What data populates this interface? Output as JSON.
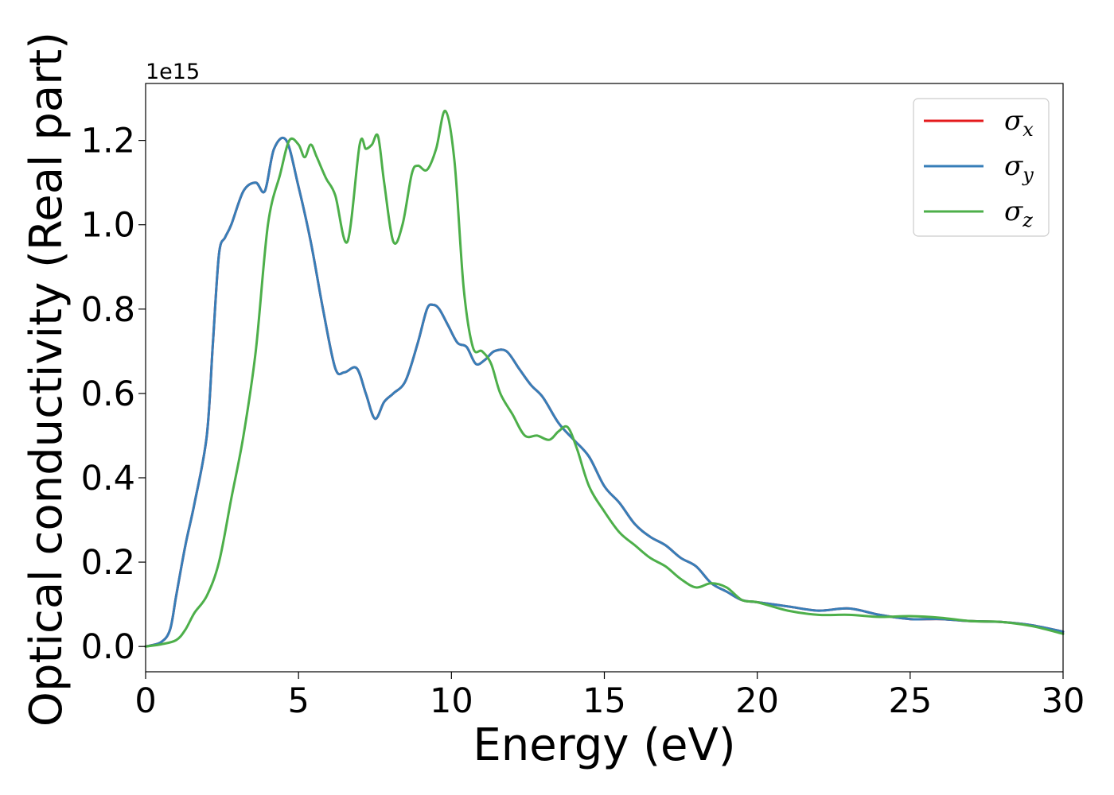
{
  "chart_data": {
    "type": "line",
    "xlabel": "Energy (eV)",
    "ylabel": "Optical conductivity (Real part)",
    "y_offset_text": "1e15",
    "xlim": [
      0,
      30
    ],
    "ylim": [
      -0.06,
      1.335
    ],
    "x_ticks": [
      0,
      5,
      10,
      15,
      20,
      25,
      30
    ],
    "x_tick_labels": [
      "0",
      "5",
      "10",
      "15",
      "20",
      "25",
      "30"
    ],
    "y_ticks": [
      0.0,
      0.2,
      0.4,
      0.6,
      0.8,
      1.0,
      1.2
    ],
    "y_tick_labels": [
      "0.0",
      "0.2",
      "0.4",
      "0.6",
      "0.8",
      "1.0",
      "1.2"
    ],
    "grid": false,
    "legend_position": "top-right",
    "series": [
      {
        "name": "σx",
        "legend_symbol": "σ",
        "legend_subscript": "x",
        "color": "#e41a1c",
        "x": [
          0,
          0.5,
          0.8,
          1,
          1.3,
          1.6,
          2,
          2.2,
          2.4,
          2.6,
          2.8,
          3.2,
          3.6,
          3.9,
          4.2,
          4.6,
          5,
          5.4,
          5.8,
          6.2,
          6.5,
          6.9,
          7.2,
          7.5,
          7.8,
          8.1,
          8.5,
          8.9,
          9.2,
          9.4,
          9.6,
          9.9,
          10.2,
          10.5,
          10.8,
          11.1,
          11.4,
          11.8,
          12.2,
          12.6,
          13,
          13.5,
          14,
          14.5,
          15,
          15.5,
          16,
          16.5,
          17,
          17.5,
          18,
          18.5,
          19,
          19.5,
          20,
          21,
          22,
          23,
          24,
          25,
          26,
          27,
          28,
          29,
          30
        ],
        "y": [
          0.0,
          0.01,
          0.04,
          0.12,
          0.24,
          0.34,
          0.5,
          0.72,
          0.93,
          0.97,
          1.0,
          1.08,
          1.1,
          1.08,
          1.18,
          1.2,
          1.09,
          0.96,
          0.8,
          0.66,
          0.65,
          0.66,
          0.6,
          0.54,
          0.58,
          0.6,
          0.63,
          0.72,
          0.8,
          0.81,
          0.8,
          0.76,
          0.72,
          0.71,
          0.67,
          0.68,
          0.7,
          0.7,
          0.66,
          0.62,
          0.59,
          0.53,
          0.49,
          0.45,
          0.38,
          0.34,
          0.29,
          0.26,
          0.24,
          0.21,
          0.19,
          0.15,
          0.13,
          0.11,
          0.105,
          0.095,
          0.085,
          0.09,
          0.075,
          0.065,
          0.065,
          0.06,
          0.058,
          0.05,
          0.035
        ]
      },
      {
        "name": "σy",
        "legend_symbol": "σ",
        "legend_subscript": "y",
        "color": "#377eb8",
        "x": [
          0,
          0.5,
          0.8,
          1,
          1.3,
          1.6,
          2,
          2.2,
          2.4,
          2.6,
          2.8,
          3.2,
          3.6,
          3.9,
          4.2,
          4.6,
          5,
          5.4,
          5.8,
          6.2,
          6.5,
          6.9,
          7.2,
          7.5,
          7.8,
          8.1,
          8.5,
          8.9,
          9.2,
          9.4,
          9.6,
          9.9,
          10.2,
          10.5,
          10.8,
          11.1,
          11.4,
          11.8,
          12.2,
          12.6,
          13,
          13.5,
          14,
          14.5,
          15,
          15.5,
          16,
          16.5,
          17,
          17.5,
          18,
          18.5,
          19,
          19.5,
          20,
          21,
          22,
          23,
          24,
          25,
          26,
          27,
          28,
          29,
          30
        ],
        "y": [
          0.0,
          0.01,
          0.04,
          0.12,
          0.24,
          0.34,
          0.5,
          0.72,
          0.93,
          0.97,
          1.0,
          1.08,
          1.1,
          1.08,
          1.18,
          1.2,
          1.09,
          0.96,
          0.8,
          0.66,
          0.65,
          0.66,
          0.6,
          0.54,
          0.58,
          0.6,
          0.63,
          0.72,
          0.8,
          0.81,
          0.8,
          0.76,
          0.72,
          0.71,
          0.67,
          0.68,
          0.7,
          0.7,
          0.66,
          0.62,
          0.59,
          0.53,
          0.49,
          0.45,
          0.38,
          0.34,
          0.29,
          0.26,
          0.24,
          0.21,
          0.19,
          0.15,
          0.13,
          0.11,
          0.105,
          0.095,
          0.085,
          0.09,
          0.075,
          0.065,
          0.065,
          0.06,
          0.058,
          0.05,
          0.035
        ]
      },
      {
        "name": "σz",
        "legend_symbol": "σ",
        "legend_subscript": "z",
        "color": "#4daf4a",
        "x": [
          0,
          0.5,
          1,
          1.3,
          1.6,
          2,
          2.4,
          2.8,
          3.2,
          3.6,
          4,
          4.4,
          4.7,
          5,
          5.2,
          5.4,
          5.6,
          5.9,
          6.2,
          6.6,
          7.0,
          7.2,
          7.4,
          7.6,
          7.8,
          8.1,
          8.4,
          8.7,
          8.9,
          9.2,
          9.5,
          9.8,
          10.1,
          10.4,
          10.7,
          11,
          11.3,
          11.6,
          12,
          12.4,
          12.8,
          13.2,
          13.5,
          13.8,
          14.1,
          14.5,
          15,
          15.5,
          16,
          16.5,
          17,
          17.5,
          18,
          18.5,
          19,
          19.5,
          20,
          21,
          22,
          23,
          24,
          25,
          26,
          27,
          28,
          29,
          30
        ],
        "y": [
          0.0,
          0.005,
          0.015,
          0.04,
          0.08,
          0.12,
          0.2,
          0.35,
          0.5,
          0.7,
          1.0,
          1.12,
          1.2,
          1.19,
          1.16,
          1.19,
          1.16,
          1.11,
          1.07,
          0.96,
          1.19,
          1.18,
          1.19,
          1.21,
          1.1,
          0.96,
          1.0,
          1.12,
          1.14,
          1.13,
          1.18,
          1.27,
          1.15,
          0.85,
          0.71,
          0.7,
          0.67,
          0.6,
          0.55,
          0.5,
          0.5,
          0.49,
          0.51,
          0.52,
          0.47,
          0.38,
          0.32,
          0.27,
          0.24,
          0.21,
          0.19,
          0.16,
          0.14,
          0.15,
          0.14,
          0.11,
          0.105,
          0.085,
          0.075,
          0.075,
          0.07,
          0.072,
          0.068,
          0.06,
          0.058,
          0.048,
          0.03
        ]
      }
    ]
  }
}
